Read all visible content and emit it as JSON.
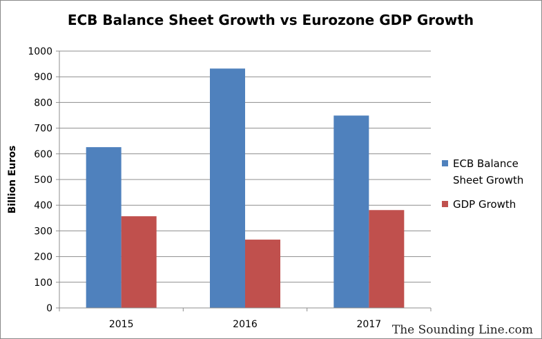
{
  "chart_data": {
    "type": "bar",
    "title": "ECB Balance Sheet Growth vs Eurozone GDP Growth",
    "xlabel": "",
    "ylabel": "Billion Euros",
    "categories": [
      "2015",
      "2016",
      "2017"
    ],
    "series": [
      {
        "name": "ECB Balance Sheet Growth",
        "legend_lines": [
          "ECB Balance",
          "Sheet Growth"
        ],
        "values": [
          626,
          932,
          749
        ],
        "color": "#4f81bd"
      },
      {
        "name": "GDP Growth",
        "legend_lines": [
          "GDP Growth"
        ],
        "values": [
          357,
          266,
          381
        ],
        "color": "#c0504d"
      }
    ],
    "ylim": [
      0,
      1000
    ],
    "yticks": [
      0,
      100,
      200,
      300,
      400,
      500,
      600,
      700,
      800,
      900,
      1000
    ],
    "grid": true,
    "legend_position": "right"
  },
  "watermark": "The Sounding Line.com"
}
